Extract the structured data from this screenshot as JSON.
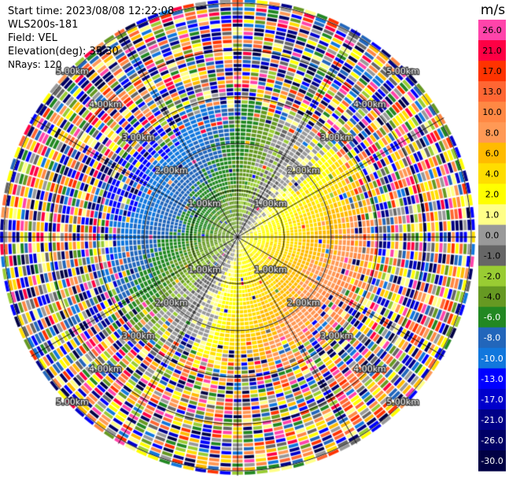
{
  "header": {
    "start_time": "Start time: 2023/08/08 12:22:08",
    "instrument": "WLS200s-181",
    "field": "Field: VEL",
    "elevation": "Elevation(deg): 35.30",
    "nrays": "NRays: 120"
  },
  "chart_data": {
    "type": "heatmap",
    "projection": "polar-ppi",
    "field": "VEL",
    "units": "m/s",
    "nrays": 120,
    "range_rings_km": [
      1.0,
      2.0,
      3.0,
      4.0,
      5.0
    ],
    "range_ring_labels": [
      "1.00km",
      "2.00km",
      "3.00km",
      "4.00km",
      "5.00km"
    ],
    "radial_spokes_deg": [
      0,
      30,
      60,
      90,
      120,
      150,
      180,
      210,
      240,
      270,
      300,
      330
    ],
    "colorbar": {
      "label": "m/s",
      "ticks": [
        "26.0",
        "21.0",
        "17.0",
        "13.0",
        "10.0",
        "8.0",
        "6.0",
        "4.0",
        "2.0",
        "1.0",
        "0.0",
        "-1.0",
        "-2.0",
        "-4.0",
        "-6.0",
        "-8.0",
        "-10.0",
        "-13.0",
        "-17.0",
        "-21.0",
        "-26.0",
        "-30.0"
      ],
      "colors": [
        "#ff44aa",
        "#ff0044",
        "#ff3300",
        "#ff6633",
        "#ff8844",
        "#ff9955",
        "#ffbb00",
        "#ffdd00",
        "#ffff00",
        "#ffff88",
        "#999999",
        "#666666",
        "#99cc33",
        "#669922",
        "#228822",
        "#2266bb",
        "#1177dd",
        "#0000ff",
        "#0000cc",
        "#000088",
        "#000066",
        "#000044"
      ]
    },
    "pattern": {
      "inner_negative_sector": "northwest (blue/green, -4 to -10 m/s)",
      "inner_positive_sector": "southeast (red/yellow, 2 to 13 m/s)",
      "outer_region": "noise beyond about 3 km"
    }
  }
}
